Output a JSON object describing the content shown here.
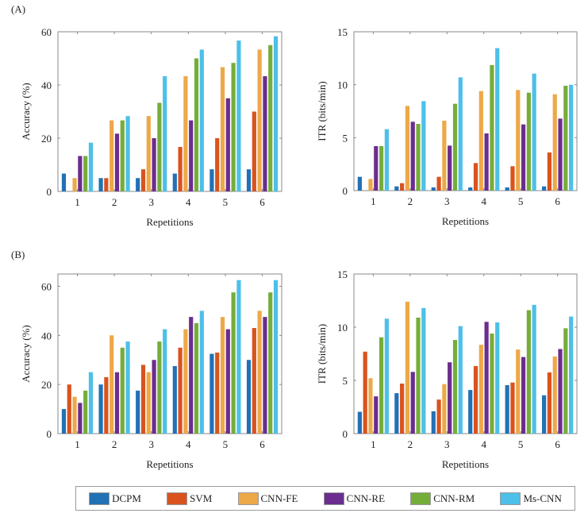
{
  "panel_labels": [
    "(A)",
    "(B)"
  ],
  "legend": [
    {
      "name": "DCPM",
      "color": "#2271b5"
    },
    {
      "name": "SVM",
      "color": "#d9531e"
    },
    {
      "name": "CNN-FE",
      "color": "#eda848"
    },
    {
      "name": "CNN-RE",
      "color": "#6b2d8e"
    },
    {
      "name": "CNN-RM",
      "color": "#75ad3a"
    },
    {
      "name": "Ms-CNN",
      "color": "#4cc0e8"
    }
  ],
  "chart_data": [
    {
      "type": "bar",
      "panel": "A",
      "title": "",
      "xlabel": "Repetitions",
      "ylabel": "Accuracy (%)",
      "categories": [
        "1",
        "2",
        "3",
        "4",
        "5",
        "6"
      ],
      "ylim": [
        0,
        60
      ],
      "yticks": [
        0,
        20,
        40,
        60
      ],
      "grid": false,
      "series": [
        {
          "name": "DCPM",
          "values": [
            6.7,
            5.0,
            5.0,
            6.7,
            8.3,
            8.3
          ]
        },
        {
          "name": "SVM",
          "values": [
            0,
            5.0,
            8.3,
            16.7,
            20.0,
            30.0
          ]
        },
        {
          "name": "CNN-FE",
          "values": [
            5.0,
            26.7,
            28.3,
            43.3,
            46.7,
            53.3
          ]
        },
        {
          "name": "CNN-RE",
          "values": [
            13.3,
            21.7,
            20.0,
            26.7,
            35.0,
            43.3
          ]
        },
        {
          "name": "CNN-RM",
          "values": [
            13.3,
            26.7,
            33.3,
            50.0,
            48.3,
            55.0
          ]
        },
        {
          "name": "Ms-CNN",
          "values": [
            18.3,
            28.3,
            43.3,
            53.3,
            56.7,
            58.3
          ]
        }
      ]
    },
    {
      "type": "bar",
      "panel": "A",
      "title": "",
      "xlabel": "Repetitions",
      "ylabel": "ITR (bits/min)",
      "categories": [
        "1",
        "2",
        "3",
        "4",
        "5",
        "6"
      ],
      "ylim": [
        0,
        15
      ],
      "yticks": [
        0,
        5,
        10,
        15
      ],
      "grid": false,
      "series": [
        {
          "name": "DCPM",
          "values": [
            1.3,
            0.4,
            0.3,
            0.3,
            0.3,
            0.4
          ]
        },
        {
          "name": "SVM",
          "values": [
            0,
            0.7,
            1.3,
            2.6,
            2.3,
            3.6
          ]
        },
        {
          "name": "CNN-FE",
          "values": [
            1.1,
            8.0,
            6.6,
            9.4,
            9.5,
            9.1
          ]
        },
        {
          "name": "CNN-RE",
          "values": [
            4.2,
            6.5,
            4.25,
            5.4,
            6.25,
            6.8
          ]
        },
        {
          "name": "CNN-RM",
          "values": [
            4.2,
            6.3,
            8.2,
            11.85,
            9.25,
            9.9
          ]
        },
        {
          "name": "Ms-CNN",
          "values": [
            5.8,
            8.45,
            10.7,
            13.45,
            11.05,
            10.0
          ]
        }
      ]
    },
    {
      "type": "bar",
      "panel": "B",
      "title": "",
      "xlabel": "Repetitions",
      "ylabel": "Accuracy (%)",
      "categories": [
        "1",
        "2",
        "3",
        "4",
        "5",
        "6"
      ],
      "ylim": [
        0,
        65
      ],
      "yticks": [
        0,
        20,
        40,
        60
      ],
      "grid": false,
      "series": [
        {
          "name": "DCPM",
          "values": [
            10.0,
            20.0,
            17.5,
            27.5,
            32.5,
            30.0
          ]
        },
        {
          "name": "SVM",
          "values": [
            20.0,
            23.0,
            28.0,
            35.0,
            33.0,
            43.0
          ]
        },
        {
          "name": "CNN-FE",
          "values": [
            15.0,
            40.0,
            25.0,
            42.5,
            47.5,
            50.0
          ]
        },
        {
          "name": "CNN-RE",
          "values": [
            12.5,
            25.0,
            30.0,
            47.5,
            42.5,
            47.5
          ]
        },
        {
          "name": "CNN-RM",
          "values": [
            17.5,
            35.0,
            37.5,
            45.0,
            57.5,
            57.5
          ]
        },
        {
          "name": "Ms-CNN",
          "values": [
            25.0,
            37.5,
            42.5,
            50.0,
            62.5,
            62.5
          ]
        }
      ]
    },
    {
      "type": "bar",
      "panel": "B",
      "title": "",
      "xlabel": "Repetitions",
      "ylabel": "ITR (bits/min)",
      "categories": [
        "1",
        "2",
        "3",
        "4",
        "5",
        "6"
      ],
      "ylim": [
        0,
        15
      ],
      "yticks": [
        0,
        5,
        10,
        15
      ],
      "grid": false,
      "series": [
        {
          "name": "DCPM",
          "values": [
            2.05,
            3.8,
            2.1,
            4.1,
            4.55,
            3.6
          ]
        },
        {
          "name": "SVM",
          "values": [
            7.7,
            4.7,
            3.2,
            6.35,
            4.8,
            5.75
          ]
        },
        {
          "name": "CNN-FE",
          "values": [
            5.2,
            12.4,
            4.65,
            8.35,
            7.9,
            7.25
          ]
        },
        {
          "name": "CNN-RE",
          "values": [
            3.5,
            5.8,
            6.7,
            10.5,
            7.2,
            7.95
          ]
        },
        {
          "name": "CNN-RM",
          "values": [
            9.05,
            10.9,
            8.8,
            9.4,
            11.6,
            9.9
          ]
        },
        {
          "name": "Ms-CNN",
          "values": [
            10.8,
            11.8,
            10.1,
            10.45,
            12.1,
            11.0
          ]
        }
      ]
    }
  ]
}
